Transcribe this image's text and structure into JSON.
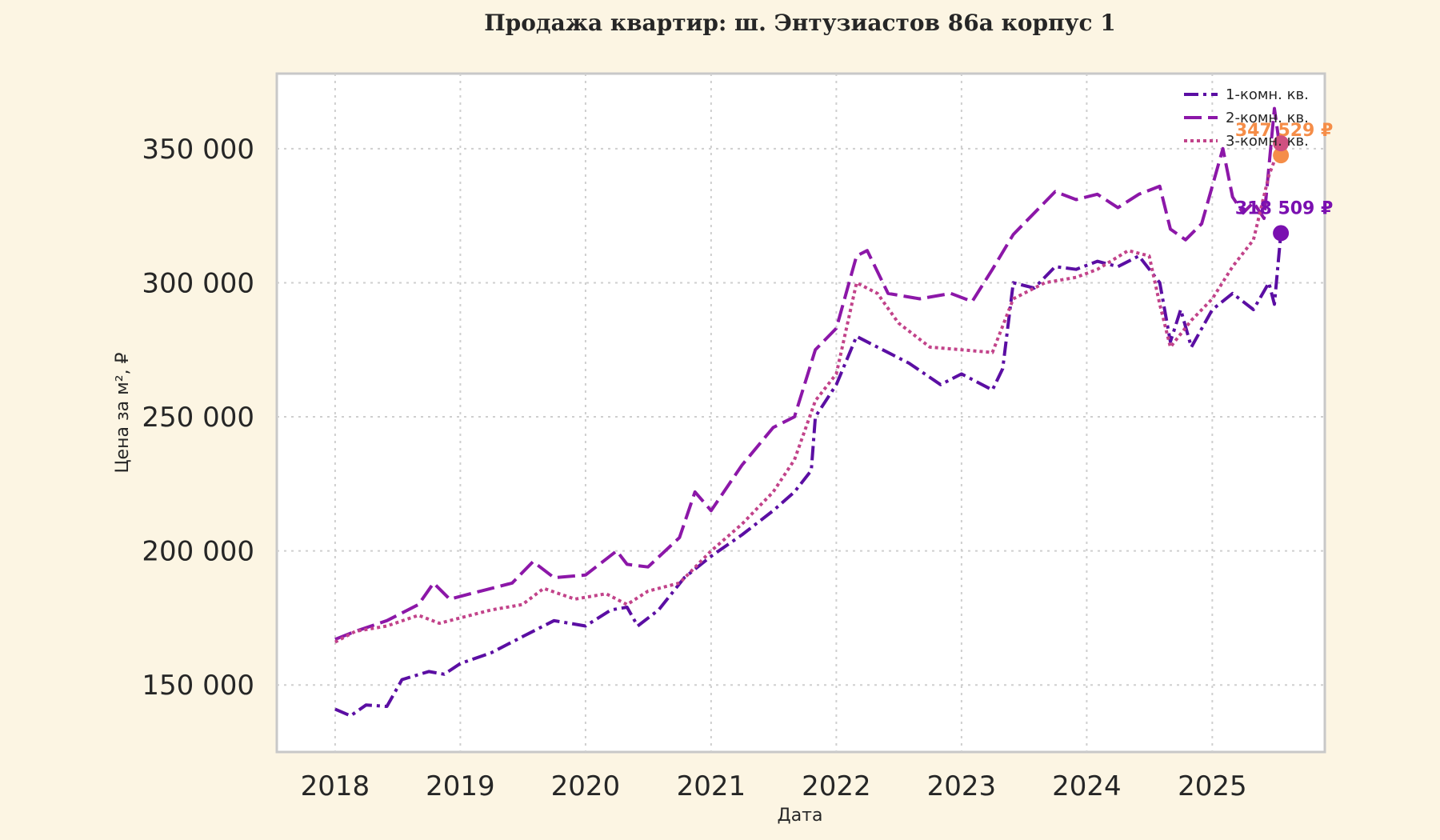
{
  "chart_data": {
    "type": "line",
    "title": "Продажа квартир: ш. Энтузиастов 86а корпус 1",
    "xlabel": "Дата",
    "ylabel": "Цена за м², ₽",
    "xlim": [
      "2017-07-15",
      "2025-11-25"
    ],
    "ylim": [
      125000,
      378000
    ],
    "x_ticks": [
      "2018",
      "2019",
      "2020",
      "2021",
      "2022",
      "2023",
      "2024",
      "2025"
    ],
    "y_ticks": [
      150000,
      200000,
      250000,
      300000,
      350000
    ],
    "y_tick_labels": [
      "150 000",
      "200 000",
      "250 000",
      "300 000",
      "350 000"
    ],
    "grid": true,
    "legend_position": "top-right",
    "series": [
      {
        "name": "1-комн. кв.",
        "color": "#5b0ea3",
        "dash": "dashdot",
        "points": [
          [
            "2018-01-01",
            141000
          ],
          [
            "2018-02-15",
            138500
          ],
          [
            "2018-04-01",
            142500
          ],
          [
            "2018-06-01",
            142000
          ],
          [
            "2018-07-15",
            152000
          ],
          [
            "2018-10-01",
            155000
          ],
          [
            "2018-11-15",
            154000
          ],
          [
            "2019-01-01",
            158000
          ],
          [
            "2019-04-01",
            162000
          ],
          [
            "2019-07-01",
            168000
          ],
          [
            "2019-10-01",
            174000
          ],
          [
            "2020-01-01",
            172000
          ],
          [
            "2020-03-15",
            178000
          ],
          [
            "2020-05-01",
            179000
          ],
          [
            "2020-06-01",
            172000
          ],
          [
            "2020-08-01",
            178000
          ],
          [
            "2020-10-15",
            190000
          ],
          [
            "2021-01-01",
            198000
          ],
          [
            "2021-04-01",
            206000
          ],
          [
            "2021-07-01",
            215000
          ],
          [
            "2021-09-01",
            222000
          ],
          [
            "2021-10-20",
            230000
          ],
          [
            "2021-11-01",
            250000
          ],
          [
            "2022-01-01",
            262000
          ],
          [
            "2022-03-01",
            280000
          ],
          [
            "2022-05-01",
            276000
          ],
          [
            "2022-08-01",
            270000
          ],
          [
            "2022-11-01",
            262000
          ],
          [
            "2023-01-01",
            266000
          ],
          [
            "2023-04-01",
            260000
          ],
          [
            "2023-05-01",
            268000
          ],
          [
            "2023-06-01",
            300000
          ],
          [
            "2023-08-01",
            298000
          ],
          [
            "2023-10-01",
            306000
          ],
          [
            "2023-12-01",
            305000
          ],
          [
            "2024-02-01",
            308000
          ],
          [
            "2024-04-01",
            306000
          ],
          [
            "2024-06-01",
            310000
          ],
          [
            "2024-08-01",
            300000
          ],
          [
            "2024-09-01",
            278000
          ],
          [
            "2024-10-01",
            290000
          ],
          [
            "2024-11-01",
            276000
          ],
          [
            "2025-01-01",
            290000
          ],
          [
            "2025-03-01",
            296000
          ],
          [
            "2025-05-01",
            290000
          ],
          [
            "2025-06-15",
            300000
          ],
          [
            "2025-07-01",
            292000
          ],
          [
            "2025-07-20",
            318509
          ]
        ]
      },
      {
        "name": "2-комн. кв.",
        "color": "#8c17a8",
        "dash": "dashed",
        "points": [
          [
            "2018-01-01",
            167000
          ],
          [
            "2018-03-01",
            170000
          ],
          [
            "2018-06-01",
            174000
          ],
          [
            "2018-09-01",
            180000
          ],
          [
            "2018-10-15",
            188000
          ],
          [
            "2018-12-01",
            182000
          ],
          [
            "2019-03-01",
            185000
          ],
          [
            "2019-06-01",
            188000
          ],
          [
            "2019-08-01",
            196000
          ],
          [
            "2019-10-01",
            190000
          ],
          [
            "2020-01-01",
            191000
          ],
          [
            "2020-04-01",
            200000
          ],
          [
            "2020-05-01",
            195000
          ],
          [
            "2020-07-01",
            194000
          ],
          [
            "2020-10-01",
            205000
          ],
          [
            "2020-11-15",
            222000
          ],
          [
            "2021-01-01",
            215000
          ],
          [
            "2021-04-01",
            232000
          ],
          [
            "2021-07-01",
            246000
          ],
          [
            "2021-09-01",
            250000
          ],
          [
            "2021-11-01",
            275000
          ],
          [
            "2022-01-01",
            283000
          ],
          [
            "2022-03-01",
            310000
          ],
          [
            "2022-04-01",
            312000
          ],
          [
            "2022-06-01",
            296000
          ],
          [
            "2022-09-01",
            294000
          ],
          [
            "2022-12-01",
            296000
          ],
          [
            "2023-02-01",
            293000
          ],
          [
            "2023-04-01",
            305000
          ],
          [
            "2023-06-01",
            318000
          ],
          [
            "2023-08-01",
            326000
          ],
          [
            "2023-10-01",
            334000
          ],
          [
            "2023-12-01",
            331000
          ],
          [
            "2024-02-01",
            333000
          ],
          [
            "2024-04-01",
            328000
          ],
          [
            "2024-06-01",
            333000
          ],
          [
            "2024-08-01",
            336000
          ],
          [
            "2024-09-01",
            320000
          ],
          [
            "2024-10-15",
            316000
          ],
          [
            "2024-12-01",
            322000
          ],
          [
            "2025-02-01",
            350000
          ],
          [
            "2025-03-01",
            332000
          ],
          [
            "2025-04-01",
            326000
          ],
          [
            "2025-05-01",
            330000
          ],
          [
            "2025-06-01",
            324000
          ],
          [
            "2025-07-01",
            365000
          ],
          [
            "2025-07-20",
            347529
          ]
        ]
      },
      {
        "name": "3-комн. кв.",
        "color": "#c2438a",
        "dash": "dotted",
        "points": [
          [
            "2018-01-01",
            166000
          ],
          [
            "2018-03-01",
            170000
          ],
          [
            "2018-06-01",
            172000
          ],
          [
            "2018-09-01",
            176000
          ],
          [
            "2018-11-01",
            173000
          ],
          [
            "2019-01-01",
            175000
          ],
          [
            "2019-04-01",
            178000
          ],
          [
            "2019-07-01",
            180000
          ],
          [
            "2019-09-01",
            186000
          ],
          [
            "2019-12-01",
            182000
          ],
          [
            "2020-03-01",
            184000
          ],
          [
            "2020-05-01",
            180000
          ],
          [
            "2020-07-01",
            185000
          ],
          [
            "2020-10-01",
            188000
          ],
          [
            "2021-01-01",
            200000
          ],
          [
            "2021-04-01",
            210000
          ],
          [
            "2021-07-01",
            222000
          ],
          [
            "2021-09-01",
            234000
          ],
          [
            "2021-11-01",
            256000
          ],
          [
            "2022-01-01",
            266000
          ],
          [
            "2022-03-01",
            300000
          ],
          [
            "2022-05-01",
            296000
          ],
          [
            "2022-07-01",
            285000
          ],
          [
            "2022-10-01",
            276000
          ],
          [
            "2023-01-01",
            275000
          ],
          [
            "2023-04-01",
            274000
          ],
          [
            "2023-06-01",
            294000
          ],
          [
            "2023-09-01",
            300000
          ],
          [
            "2023-12-01",
            302000
          ],
          [
            "2024-02-01",
            305000
          ],
          [
            "2024-05-01",
            312000
          ],
          [
            "2024-07-01",
            310000
          ],
          [
            "2024-08-01",
            292000
          ],
          [
            "2024-09-01",
            276000
          ],
          [
            "2024-11-01",
            286000
          ],
          [
            "2025-01-01",
            294000
          ],
          [
            "2025-03-01",
            306000
          ],
          [
            "2025-05-01",
            316000
          ],
          [
            "2025-06-15",
            340000
          ],
          [
            "2025-07-20",
            352000
          ]
        ]
      }
    ],
    "annotations": [
      {
        "date": "2025-07-20",
        "value": 347529,
        "color": "#f58d48",
        "label": "347 529 ₽"
      },
      {
        "date": "2025-07-20",
        "value": 352000,
        "color": "#cf5080",
        "label": ""
      },
      {
        "date": "2025-07-20",
        "value": 318509,
        "color": "#7a10b0",
        "label": "318 509 ₽"
      }
    ]
  }
}
